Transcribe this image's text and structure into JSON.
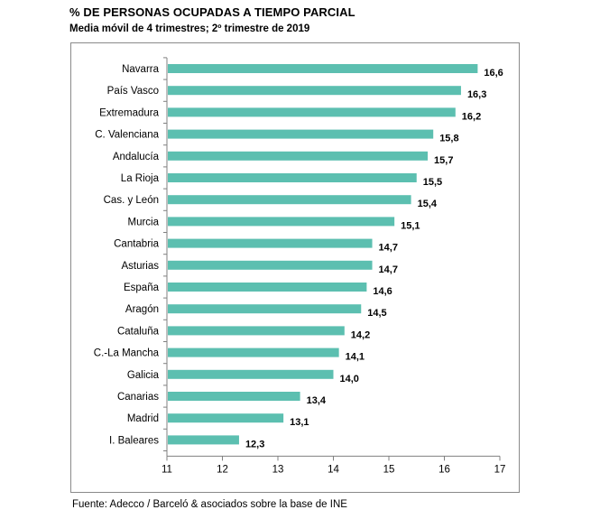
{
  "header": {
    "title": "% DE PERSONAS OCUPADAS A TIEMPO PARCIAL",
    "subtitle": "Media móvil de 4 trimestres; 2º trimestre de 2019"
  },
  "footer": {
    "source": "Fuente: Adecco / Barceló & asociados sobre la base de INE"
  },
  "colors": {
    "bar": "#5cbfb0",
    "axis": "#808080",
    "frame": "#8a8a8a"
  },
  "chart_data": {
    "type": "bar",
    "orientation": "horizontal",
    "title": "% DE PERSONAS OCUPADAS A TIEMPO PARCIAL",
    "subtitle": "Media móvil de 4 trimestres; 2º trimestre de 2019",
    "xlabel": "",
    "ylabel": "",
    "xlim": [
      11,
      17
    ],
    "x_ticks": [
      "11",
      "12",
      "13",
      "14",
      "15",
      "16",
      "17"
    ],
    "grid": false,
    "legend": "none",
    "categories": [
      "Navarra",
      "País Vasco",
      "Extremadura",
      "C. Valenciana",
      "Andalucía",
      "La Rioja",
      "Cas. y León",
      "Murcia",
      "Cantabria",
      "Asturias",
      "España",
      "Aragón",
      "Cataluña",
      "C.-La Mancha",
      "Galicia",
      "Canarias",
      "Madrid",
      "I. Baleares"
    ],
    "values": [
      16.6,
      16.3,
      16.2,
      15.8,
      15.7,
      15.5,
      15.4,
      15.1,
      14.7,
      14.7,
      14.6,
      14.5,
      14.2,
      14.1,
      14.0,
      13.4,
      13.1,
      12.3
    ],
    "value_labels": [
      "16,6",
      "16,3",
      "16,2",
      "15,8",
      "15,7",
      "15,5",
      "15,4",
      "15,1",
      "14,7",
      "14,7",
      "14,6",
      "14,5",
      "14,2",
      "14,1",
      "14,0",
      "13,4",
      "13,1",
      "12,3"
    ]
  }
}
